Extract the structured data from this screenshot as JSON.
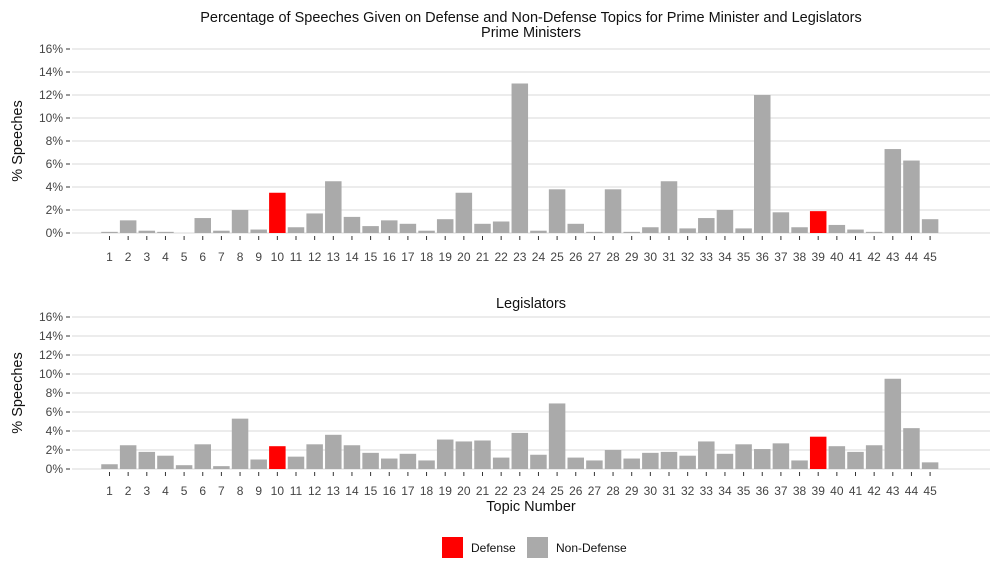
{
  "chart_data": {
    "type": "bar",
    "title": "Percentage of Speeches Given on Defense and Non-Defense Topics for Prime Minister and Legislators",
    "xlabel": "Topic Number",
    "ylabel": "% Speeches",
    "ylim": [
      0,
      16
    ],
    "yticks": [
      "0%",
      "2%",
      "4%",
      "6%",
      "8%",
      "10%",
      "12%",
      "14%",
      "16%"
    ],
    "categories": [
      "1",
      "2",
      "3",
      "4",
      "5",
      "6",
      "7",
      "8",
      "9",
      "10",
      "11",
      "12",
      "13",
      "14",
      "15",
      "16",
      "17",
      "18",
      "19",
      "20",
      "21",
      "22",
      "23",
      "24",
      "25",
      "26",
      "27",
      "28",
      "29",
      "30",
      "31",
      "32",
      "33",
      "34",
      "35",
      "36",
      "37",
      "38",
      "39",
      "40",
      "41",
      "42",
      "43",
      "44",
      "45"
    ],
    "defense_topics": [
      "10",
      "39"
    ],
    "colors": {
      "Defense": "#ff0000",
      "Non-Defense": "#aaaaaa"
    },
    "grid": true,
    "legend": {
      "position": "bottom",
      "entries": [
        "Defense",
        "Non-Defense"
      ]
    },
    "panels": [
      {
        "subtitle": "Prime Ministers",
        "values": [
          0.1,
          1.1,
          0.2,
          0.1,
          0.0,
          1.3,
          0.2,
          2.0,
          0.3,
          3.5,
          0.5,
          1.7,
          4.5,
          1.4,
          0.6,
          1.1,
          0.8,
          0.2,
          1.2,
          3.5,
          0.8,
          1.0,
          13.0,
          0.2,
          3.8,
          0.8,
          0.1,
          3.8,
          0.1,
          0.5,
          4.5,
          0.4,
          1.3,
          2.0,
          0.4,
          12.0,
          1.8,
          0.5,
          1.9,
          0.7,
          0.3,
          0.1,
          7.3,
          6.3,
          1.2
        ]
      },
      {
        "subtitle": "Legislators",
        "values": [
          0.5,
          2.5,
          1.8,
          1.4,
          0.4,
          2.6,
          0.3,
          5.3,
          1.0,
          2.4,
          1.3,
          2.6,
          3.6,
          2.5,
          1.7,
          1.1,
          1.6,
          0.9,
          3.1,
          2.9,
          3.0,
          1.2,
          3.8,
          1.5,
          6.9,
          1.2,
          0.9,
          2.0,
          1.1,
          1.7,
          1.8,
          1.4,
          2.9,
          1.6,
          2.6,
          2.1,
          2.7,
          0.9,
          3.4,
          2.4,
          1.8,
          2.5,
          9.5,
          4.3,
          0.7
        ]
      }
    ]
  }
}
